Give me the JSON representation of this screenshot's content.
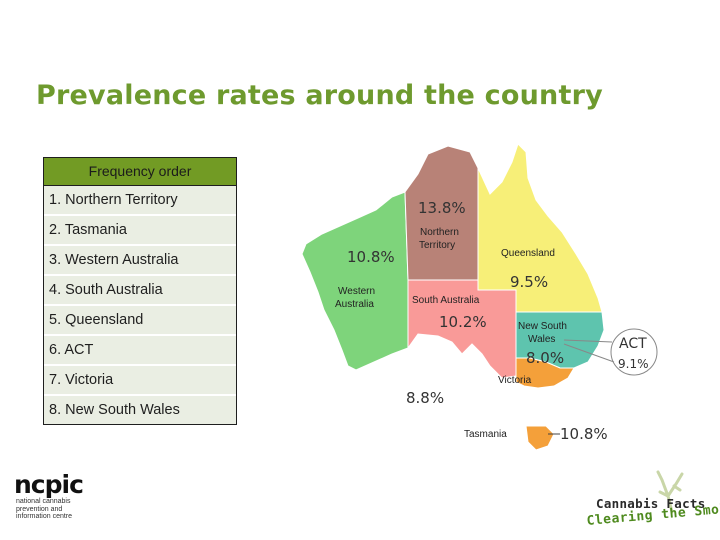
{
  "title": "Prevalence rates around the country",
  "table": {
    "header": "Frequency order",
    "rows": [
      "1. Northern Territory",
      "2. Tasmania",
      "3. Western Australia",
      "4. South Australia",
      "5. Queensland",
      "6. ACT",
      "7. Victoria",
      "8. New South Wales"
    ]
  },
  "map": {
    "regions": {
      "wa": {
        "name": "Western Australia",
        "rate": "10.8%",
        "color": "#7ed47b"
      },
      "nt": {
        "name": "Northern Territory",
        "rate": "13.8%",
        "color": "#b88277"
      },
      "qld": {
        "name": "Queensland",
        "rate": "9.5%",
        "color": "#f7ef78"
      },
      "sa": {
        "name": "South Australia",
        "rate": "10.2%",
        "color": "#f99a98"
      },
      "nsw": {
        "name": "New South Wales",
        "rate": "8.0%",
        "color": "#5ec4ae"
      },
      "vic": {
        "name": "Victoria",
        "rate": "8.8%",
        "color": "#f4a03a"
      },
      "tas": {
        "name": "Tasmania",
        "rate": "10.8%",
        "color": "#f4a03a"
      },
      "act": {
        "name": "ACT",
        "rate": "9.1%"
      }
    },
    "labels": {
      "wa_line1": "Western",
      "wa_line2": "Australia",
      "nt_line1": "Northern",
      "nt_line2": "Territory",
      "qld": "Queensland",
      "sa": "South Australia",
      "nsw_line1": "New South",
      "nsw_line2": "Wales",
      "vic": "Victoria",
      "tas": "Tasmania",
      "act": "ACT"
    }
  },
  "logos": {
    "ncpic": {
      "word": "ncpic",
      "sub": [
        "national cannabis",
        "prevention and",
        "information centre"
      ]
    },
    "cannabis_facts": {
      "line1": "Cannabis Facts",
      "line2": "Clearing the Smoke"
    }
  }
}
